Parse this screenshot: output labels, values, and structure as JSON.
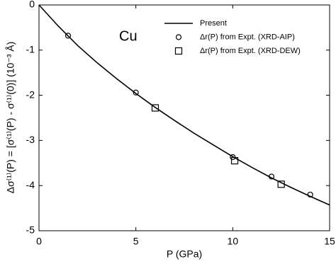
{
  "chart_data": {
    "type": "line",
    "xlabel": "P (GPa)",
    "ylabel": "Δσ⁽¹⁾(P) = [σ⁽¹⁾(P) - σ⁽¹⁾(0)] (10⁻³ Å)",
    "annotation": "Cu",
    "xlim": [
      0,
      15
    ],
    "xticks": [
      0,
      5,
      10,
      15
    ],
    "ylim": [
      -5,
      0
    ],
    "yticks": [
      0,
      -1,
      -2,
      -3,
      -4,
      -5
    ],
    "legend": "upper right",
    "series": [
      {
        "name": "Present",
        "color": "#000000",
        "marker": "none",
        "x": [
          0,
          1,
          2,
          3,
          4,
          5,
          6,
          7,
          8,
          9,
          10,
          11,
          12,
          13,
          14,
          15
        ],
        "values": [
          0,
          -0.47,
          -0.9,
          -1.28,
          -1.63,
          -1.96,
          -2.27,
          -2.56,
          -2.84,
          -3.1,
          -3.36,
          -3.6,
          -3.83,
          -4.04,
          -4.24,
          -4.43
        ]
      },
      {
        "name": "Δr(P) from Expt. (XRD-AIP)",
        "color": "#000000",
        "marker": "circle",
        "x": [
          1.5,
          5,
          10,
          12,
          14
        ],
        "values": [
          -0.68,
          -1.94,
          -3.37,
          -3.8,
          -4.2
        ]
      },
      {
        "name": "Δr(P) from Expt. (XRD-DEW)",
        "color": "#000000",
        "marker": "square",
        "x": [
          6,
          10.1,
          12.5
        ],
        "values": [
          -2.28,
          -3.45,
          -3.97
        ]
      }
    ]
  }
}
